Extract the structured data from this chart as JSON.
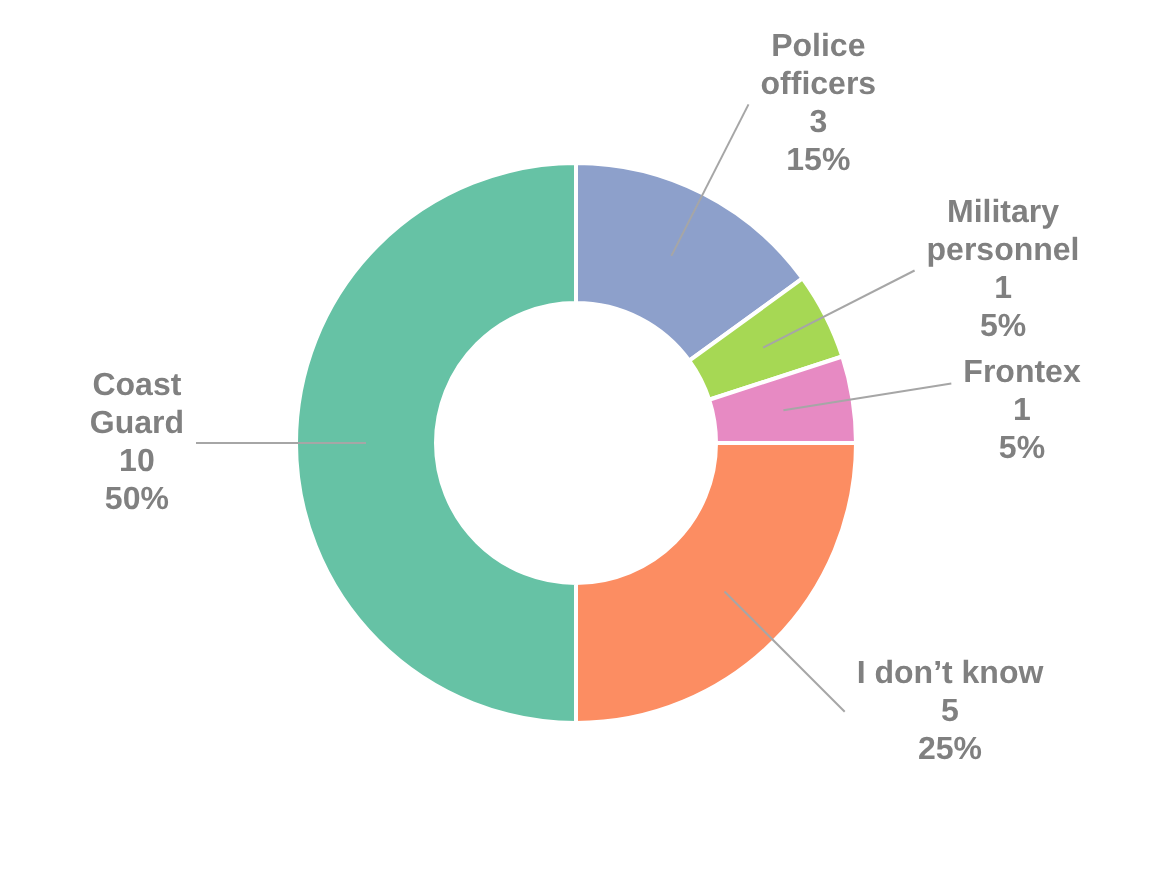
{
  "chart_data": {
    "type": "donut",
    "categories": [
      "Police officers",
      "Military personnel",
      "Frontex",
      "I don’t know",
      "Coast Guard"
    ],
    "values": [
      3,
      1,
      1,
      5,
      10
    ],
    "colors": [
      "#8da0cb",
      "#a6d854",
      "#e78ac3",
      "#fc8d62",
      "#66c2a5"
    ],
    "value_labels": [
      "3\n15%",
      "1\n5%",
      "1\n5%",
      "5\n25%",
      "10\n50%"
    ]
  }
}
